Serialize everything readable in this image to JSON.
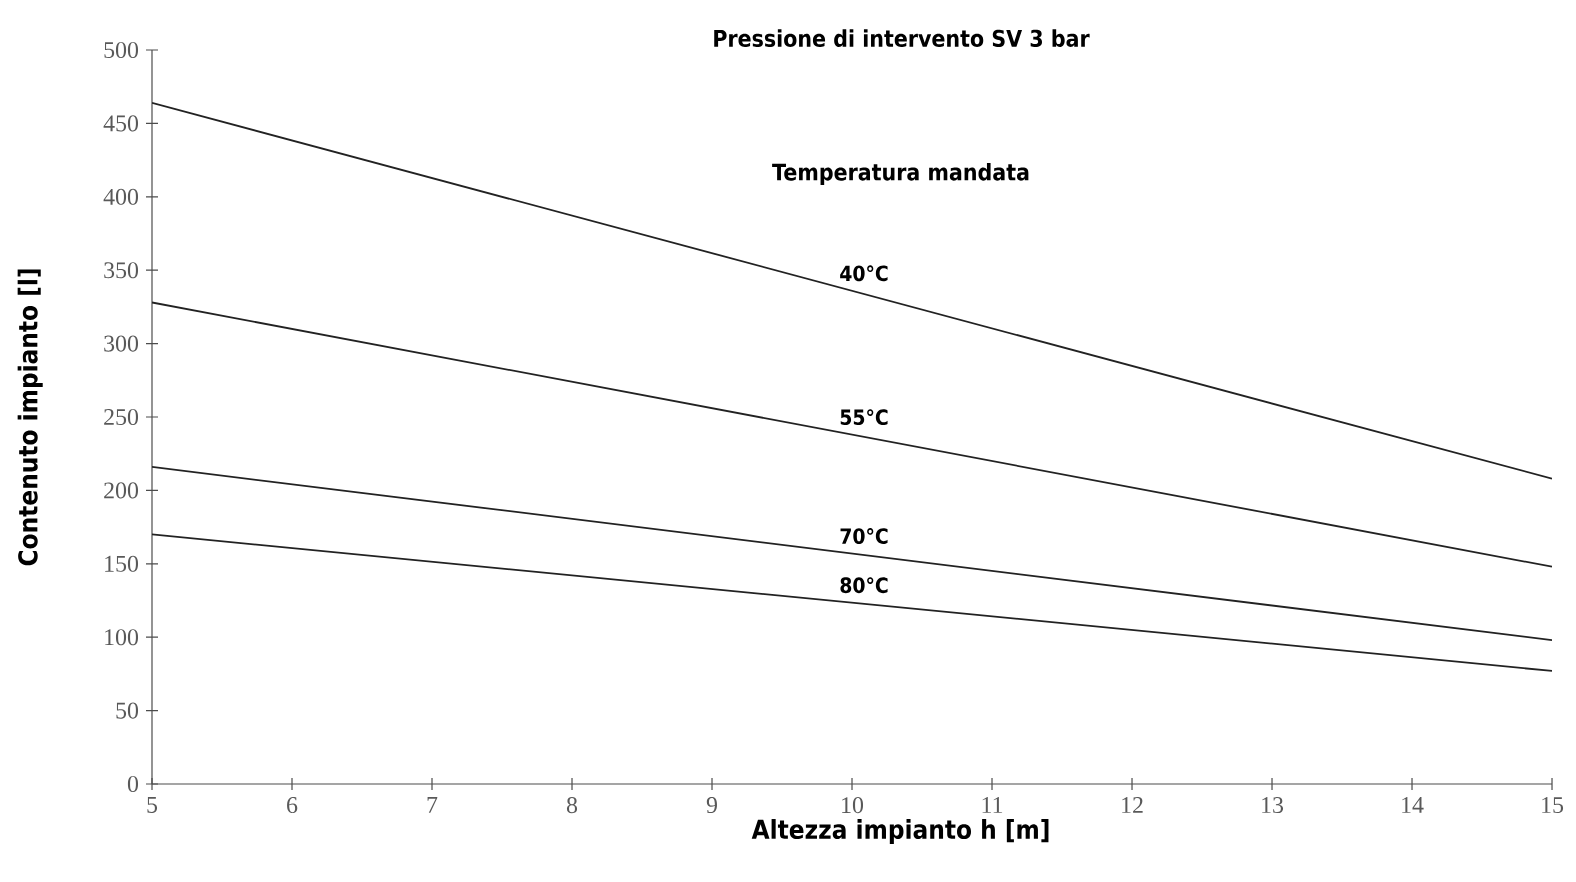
{
  "chart_data": {
    "type": "line",
    "title": "Pressione di intervento SV 3 bar",
    "legend_title": "Temperatura mandata",
    "xlabel": "Altezza impianto h [m]",
    "ylabel": "Contenuto impianto [l]",
    "x": [
      5,
      15
    ],
    "series": [
      {
        "name": "40°C",
        "color": "#222222",
        "values": [
          464,
          208
        ]
      },
      {
        "name": "55°C",
        "color": "#222222",
        "values": [
          328,
          148
        ]
      },
      {
        "name": "70°C",
        "color": "#222222",
        "values": [
          216,
          98
        ]
      },
      {
        "name": "80°C",
        "color": "#222222",
        "values": [
          170,
          77
        ]
      }
    ],
    "xlim": [
      5,
      15
    ],
    "ylim": [
      0,
      500
    ],
    "xticks": [
      5,
      6,
      7,
      8,
      9,
      10,
      11,
      12,
      13,
      14,
      15
    ],
    "yticks": [
      0,
      50,
      100,
      150,
      200,
      250,
      300,
      350,
      400,
      450,
      500
    ],
    "grid": false,
    "marker": "none",
    "line_style": "solid"
  }
}
